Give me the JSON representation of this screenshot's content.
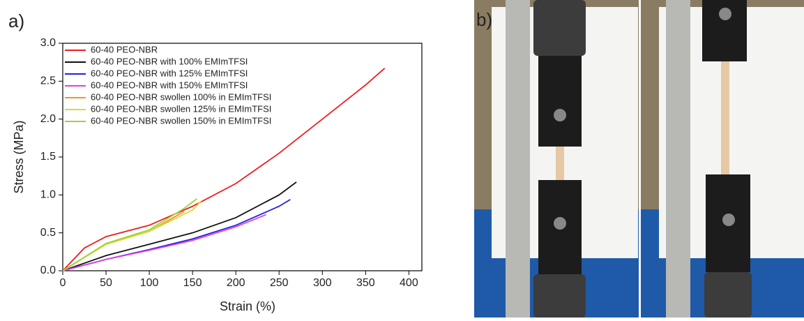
{
  "chart_data": {
    "type": "line",
    "panel_label": "a)",
    "x_label": "Strain (%)",
    "y_label": "Stress (MPa)",
    "xlim": [
      0,
      415
    ],
    "ylim": [
      0,
      3
    ],
    "xticks": [
      0,
      50,
      100,
      150,
      200,
      250,
      300,
      350,
      400
    ],
    "yticks": [
      {
        "value": 0,
        "label": "0.0"
      },
      {
        "value": 0.5,
        "label": "0.5"
      },
      {
        "value": 1,
        "label": "1.0"
      },
      {
        "value": 1.5,
        "label": "1.5"
      },
      {
        "value": 2,
        "label": "2.0"
      },
      {
        "value": 2.5,
        "label": "2.5"
      },
      {
        "value": 3,
        "label": "3.0"
      }
    ],
    "legend": "upper left",
    "series": [
      {
        "name": "60-40 PEO-NBR",
        "color": "#ee1c1c",
        "x": [
          0,
          25,
          50,
          100,
          150,
          200,
          250,
          300,
          350,
          372
        ],
        "values": [
          0,
          0.3,
          0.45,
          0.6,
          0.85,
          1.15,
          1.55,
          2.0,
          2.45,
          2.67
        ]
      },
      {
        "name": "60-40 PEO-NBR with 100% EMImTFSI",
        "color": "#111111",
        "x": [
          0,
          50,
          100,
          150,
          200,
          250,
          270
        ],
        "values": [
          0,
          0.2,
          0.35,
          0.5,
          0.7,
          1.0,
          1.17
        ]
      },
      {
        "name": "60-40 PEO-NBR with 125% EMImTFSI",
        "color": "#2020dd",
        "x": [
          0,
          50,
          100,
          150,
          200,
          250,
          263
        ],
        "values": [
          0,
          0.15,
          0.28,
          0.42,
          0.6,
          0.85,
          0.94
        ]
      },
      {
        "name": "60-40 PEO-NBR with 150% EMImTFSI",
        "color": "#e040e0",
        "x": [
          0,
          50,
          100,
          150,
          200,
          235
        ],
        "values": [
          0,
          0.15,
          0.27,
          0.4,
          0.58,
          0.74
        ]
      },
      {
        "name": "60-40 PEO-NBR swollen 100% in EMImTFSI",
        "color": "#f5922a",
        "x": [
          0,
          50,
          100,
          140
        ],
        "values": [
          0,
          0.35,
          0.52,
          0.78
        ]
      },
      {
        "name": "60-40 PEO-NBR swollen 125% in EMImTFSI",
        "color": "#d6dc2a",
        "x": [
          0,
          50,
          100,
          150,
          160
        ],
        "values": [
          0,
          0.35,
          0.52,
          0.8,
          0.92
        ]
      },
      {
        "name": "60-40 PEO-NBR swollen 150% in EMImTFSI",
        "color": "#9ad43a",
        "x": [
          0,
          50,
          100,
          140,
          155
        ],
        "values": [
          0,
          0.36,
          0.54,
          0.82,
          0.95
        ]
      }
    ]
  },
  "photo": {
    "panel_label": "b)"
  }
}
